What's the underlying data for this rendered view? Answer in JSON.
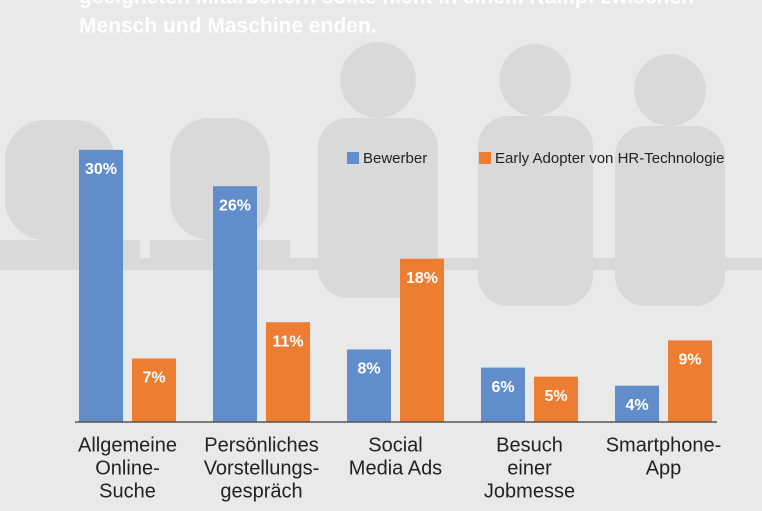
{
  "chart_data": {
    "type": "bar",
    "title": [
      "geeigneten Mitarbeitern sollte nicht in einem Kampf zwischen",
      "Mensch und Maschine enden."
    ],
    "categories": [
      [
        "Allgemeine",
        "Online-",
        "Suche"
      ],
      [
        "Persönliches",
        "Vorstellungs-",
        "gespräch"
      ],
      [
        "Social",
        "Media Ads"
      ],
      [
        "Besuch",
        "einer",
        "Jobmesse"
      ],
      [
        "Smartphone-",
        "App"
      ]
    ],
    "series": [
      {
        "name": "Bewerber",
        "color": "#628dcb",
        "values": [
          30,
          26,
          8,
          6,
          4
        ],
        "value_labels": [
          "30%",
          "26%",
          "8%",
          "6%",
          "4%"
        ]
      },
      {
        "name": "Early Adopter von HR-Technologie",
        "color": "#ec7d31",
        "values": [
          7,
          11,
          18,
          5,
          9
        ],
        "value_labels": [
          "7%",
          "11%",
          "18%",
          "5%",
          "9%"
        ]
      }
    ]
  }
}
